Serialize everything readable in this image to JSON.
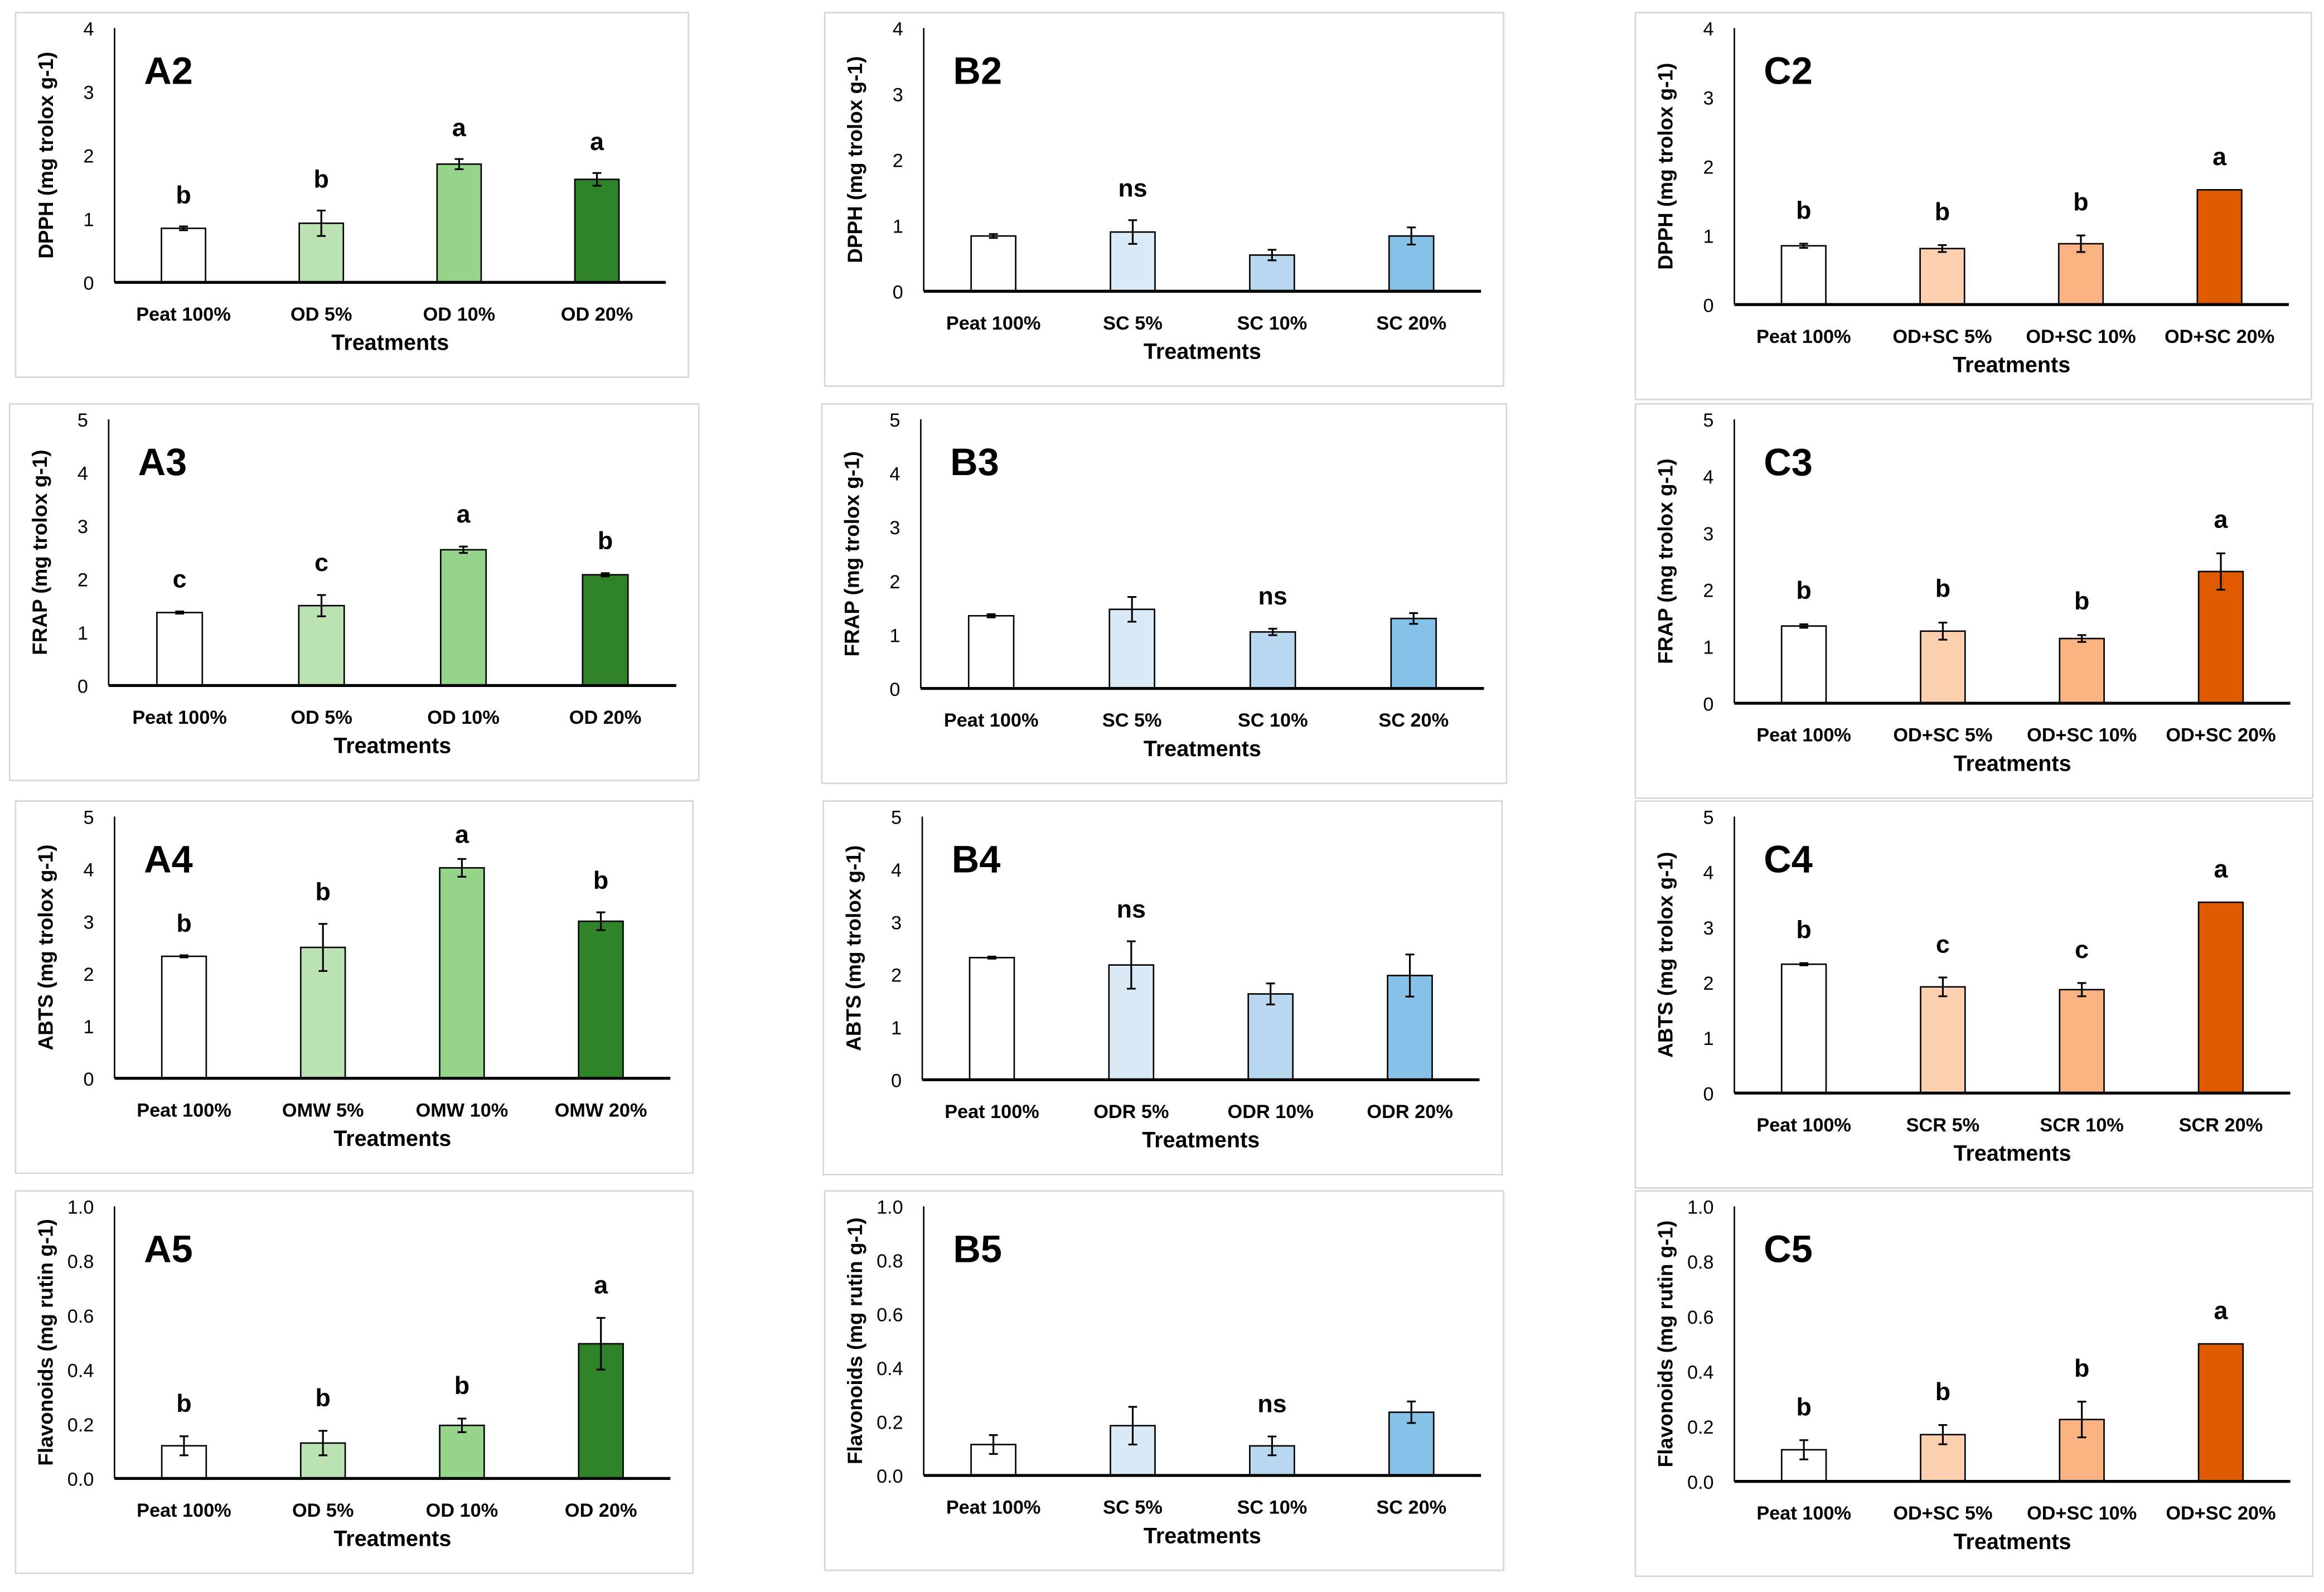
{
  "chart_data": [
    {
      "id": "A2",
      "type": "bar",
      "title": "A2",
      "ylabel": "DPPH (mg trolox g-1)",
      "xlabel": "Treatments",
      "ylim": [
        0,
        4
      ],
      "yticks": [
        0,
        1,
        2,
        3,
        4
      ],
      "categories": [
        "Peat 100%",
        "OD 5%",
        "OD 10%",
        "OD 20%"
      ],
      "values": [
        0.85,
        0.93,
        1.86,
        1.62
      ],
      "errors": [
        0.03,
        0.2,
        0.08,
        0.1
      ],
      "letters": [
        "b",
        "b",
        "a",
        "a"
      ],
      "colors": [
        "#ffffff",
        "#bde3b5",
        "#96d38b",
        "#2e8228"
      ]
    },
    {
      "id": "B2",
      "type": "bar",
      "title": "B2",
      "ylabel": "DPPH (mg trolox g-1)",
      "xlabel": "Treatments",
      "ylim": [
        0,
        4
      ],
      "yticks": [
        0,
        1,
        2,
        3,
        4
      ],
      "categories": [
        "Peat 100%",
        "SC 5%",
        "SC 10%",
        "SC 20%"
      ],
      "values": [
        0.84,
        0.9,
        0.55,
        0.84
      ],
      "errors": [
        0.03,
        0.18,
        0.08,
        0.13
      ],
      "letters": [
        "",
        "ns",
        "",
        ""
      ],
      "colors": [
        "#ffffff",
        "#dbeaf7",
        "#b8d8f0",
        "#86c1e8"
      ]
    },
    {
      "id": "C2",
      "type": "bar",
      "title": "C2",
      "ylabel": "DPPH (mg trolox g-1)",
      "xlabel": "Treatments",
      "ylim": [
        0,
        4
      ],
      "yticks": [
        0,
        1,
        2,
        3,
        4
      ],
      "categories": [
        "Peat 100%",
        "OD+SC 5%",
        "OD+SC 10%",
        "OD+SC 20%"
      ],
      "values": [
        0.85,
        0.81,
        0.88,
        1.66
      ],
      "errors": [
        0.03,
        0.05,
        0.12,
        0
      ],
      "letters": [
        "b",
        "b",
        "b",
        "a"
      ],
      "colors": [
        "#ffffff",
        "#fdd0b0",
        "#fbb383",
        "#e05a00"
      ]
    },
    {
      "id": "A3",
      "type": "bar",
      "title": "A3",
      "ylabel": "FRAP (mg trolox g-1)",
      "xlabel": "Treatments",
      "ylim": [
        0,
        5
      ],
      "yticks": [
        0,
        1,
        2,
        3,
        4,
        5
      ],
      "categories": [
        "Peat 100%",
        "OD 5%",
        "OD 10%",
        "OD 20%"
      ],
      "values": [
        1.37,
        1.5,
        2.55,
        2.08
      ],
      "errors": [
        0.02,
        0.2,
        0.06,
        0.03
      ],
      "letters": [
        "c",
        "c",
        "a",
        "b"
      ],
      "colors": [
        "#ffffff",
        "#bde3b5",
        "#96d38b",
        "#2e8228"
      ]
    },
    {
      "id": "B3",
      "type": "bar",
      "title": "B3",
      "ylabel": "FRAP (mg trolox g-1)",
      "xlabel": "Treatments",
      "ylim": [
        0,
        5
      ],
      "yticks": [
        0,
        1,
        2,
        3,
        4,
        5
      ],
      "categories": [
        "Peat 100%",
        "SC 5%",
        "SC 10%",
        "SC 20%"
      ],
      "values": [
        1.35,
        1.47,
        1.05,
        1.3
      ],
      "errors": [
        0.03,
        0.23,
        0.06,
        0.1
      ],
      "letters": [
        "",
        "",
        "ns",
        ""
      ],
      "colors": [
        "#ffffff",
        "#dbeaf7",
        "#b8d8f0",
        "#86c1e8"
      ]
    },
    {
      "id": "C3",
      "type": "bar",
      "title": "C3",
      "ylabel": "FRAP (mg trolox g-1)",
      "xlabel": "Treatments",
      "ylim": [
        0,
        5
      ],
      "yticks": [
        0,
        1,
        2,
        3,
        4,
        5
      ],
      "categories": [
        "Peat 100%",
        "OD+SC 5%",
        "OD+SC 10%",
        "OD+SC 20%"
      ],
      "values": [
        1.36,
        1.27,
        1.14,
        2.32
      ],
      "errors": [
        0.03,
        0.15,
        0.06,
        0.32
      ],
      "letters": [
        "b",
        "b",
        "b",
        "a"
      ],
      "colors": [
        "#ffffff",
        "#fdd0b0",
        "#fbb383",
        "#e05a00"
      ]
    },
    {
      "id": "A4",
      "type": "bar",
      "title": "A4",
      "ylabel": "ABTS (mg trolox g-1)",
      "xlabel": "Treatments",
      "ylim": [
        0,
        5
      ],
      "yticks": [
        0,
        1,
        2,
        3,
        4,
        5
      ],
      "categories": [
        "Peat 100%",
        "OMW 5%",
        "OMW 10%",
        "OMW 20%"
      ],
      "values": [
        2.33,
        2.5,
        4.02,
        3.0
      ],
      "errors": [
        0.02,
        0.45,
        0.17,
        0.17
      ],
      "letters": [
        "b",
        "b",
        "a",
        "b"
      ],
      "colors": [
        "#ffffff",
        "#bde3b5",
        "#96d38b",
        "#2e8228"
      ]
    },
    {
      "id": "B4",
      "type": "bar",
      "title": "B4",
      "ylabel": "ABTS (mg trolox g-1)",
      "xlabel": "Treatments",
      "ylim": [
        0,
        5
      ],
      "yticks": [
        0,
        1,
        2,
        3,
        4,
        5
      ],
      "categories": [
        "Peat 100%",
        "ODR 5%",
        "ODR 10%",
        "ODR 20%"
      ],
      "values": [
        2.32,
        2.18,
        1.63,
        1.98
      ],
      "errors": [
        0.02,
        0.45,
        0.2,
        0.4
      ],
      "letters": [
        "",
        "ns",
        "",
        ""
      ],
      "colors": [
        "#ffffff",
        "#dbeaf7",
        "#b8d8f0",
        "#86c1e8"
      ]
    },
    {
      "id": "C4",
      "type": "bar",
      "title": "C4",
      "ylabel": "ABTS (mg trolox g-1)",
      "xlabel": "Treatments",
      "ylim": [
        0,
        5
      ],
      "yticks": [
        0,
        1,
        2,
        3,
        4,
        5
      ],
      "categories": [
        "Peat 100%",
        "SCR 5%",
        "SCR 10%",
        "SCR 20%"
      ],
      "values": [
        2.33,
        1.92,
        1.87,
        3.45
      ],
      "errors": [
        0.02,
        0.17,
        0.12,
        0
      ],
      "letters": [
        "b",
        "c",
        "c",
        "a"
      ],
      "colors": [
        "#ffffff",
        "#fdd0b0",
        "#fbb383",
        "#e05a00"
      ]
    },
    {
      "id": "A5",
      "type": "bar",
      "title": "A5",
      "ylabel": "Flavonoids (mg rutin g-1)",
      "xlabel": "Treatments",
      "ylim": [
        0,
        1
      ],
      "yticks": [
        "0.0",
        "0.2",
        "0.4",
        "0.6",
        "0.8",
        "1.0"
      ],
      "categories": [
        "Peat 100%",
        "OD 5%",
        "OD 10%",
        "OD 20%"
      ],
      "values": [
        0.12,
        0.13,
        0.195,
        0.495
      ],
      "errors": [
        0.035,
        0.045,
        0.025,
        0.095
      ],
      "letters": [
        "b",
        "b",
        "b",
        "a"
      ],
      "colors": [
        "#ffffff",
        "#bde3b5",
        "#96d38b",
        "#2e8228"
      ]
    },
    {
      "id": "B5",
      "type": "bar",
      "title": "B5",
      "ylabel": "Flavonoids (mg rutin g-1)",
      "xlabel": "Treatments",
      "ylim": [
        0,
        1
      ],
      "yticks": [
        "0.0",
        "0.2",
        "0.4",
        "0.6",
        "0.8",
        "1.0"
      ],
      "categories": [
        "Peat 100%",
        "SC 5%",
        "SC 10%",
        "SC 20%"
      ],
      "values": [
        0.115,
        0.185,
        0.11,
        0.235
      ],
      "errors": [
        0.035,
        0.07,
        0.035,
        0.04
      ],
      "letters": [
        "",
        "",
        "ns",
        ""
      ],
      "colors": [
        "#ffffff",
        "#dbeaf7",
        "#b8d8f0",
        "#86c1e8"
      ]
    },
    {
      "id": "C5",
      "type": "bar",
      "title": "C5",
      "ylabel": "Flavonoids (mg rutin g-1)",
      "xlabel": "Treatments",
      "ylim": [
        0,
        1
      ],
      "yticks": [
        "0.0",
        "0.2",
        "0.4",
        "0.6",
        "0.8",
        "1.0"
      ],
      "categories": [
        "Peat 100%",
        "OD+SC 5%",
        "OD+SC 10%",
        "OD+SC 20%"
      ],
      "values": [
        0.115,
        0.17,
        0.225,
        0.5
      ],
      "errors": [
        0.035,
        0.035,
        0.065,
        0
      ],
      "letters": [
        "b",
        "b",
        "b",
        "a"
      ],
      "colors": [
        "#ffffff",
        "#fdd0b0",
        "#fbb383",
        "#e05a00"
      ]
    }
  ]
}
